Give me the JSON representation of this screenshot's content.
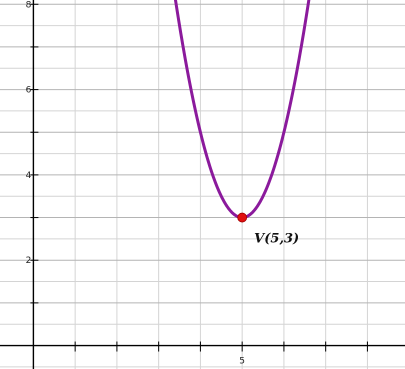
{
  "chart_data": {
    "type": "line",
    "title": "",
    "xlabel": "",
    "ylabel": "",
    "grid": true,
    "colors": {
      "curve": "#8b1a9c",
      "vertex": "#e01010",
      "grid_minor": "#d4d4d4",
      "grid_major": "#b4b4b4",
      "axis": "#000000"
    },
    "xlim": [
      -0.8,
      8.9
    ],
    "ylim": [
      -0.55,
      8.1
    ],
    "x_ticks": [
      {
        "value": 5,
        "label": "5"
      }
    ],
    "y_ticks": [
      {
        "value": 2,
        "label": "2"
      },
      {
        "value": 4,
        "label": "4"
      },
      {
        "value": 6,
        "label": "6"
      },
      {
        "value": 8,
        "label": "8"
      }
    ],
    "series": [
      {
        "function": "y = 2(x - 5)^2 + 3",
        "x_domain": [
          2.9,
          7.1
        ]
      }
    ],
    "points": [
      {
        "x": 5,
        "y": 3,
        "label": "V(5,3)"
      }
    ]
  }
}
